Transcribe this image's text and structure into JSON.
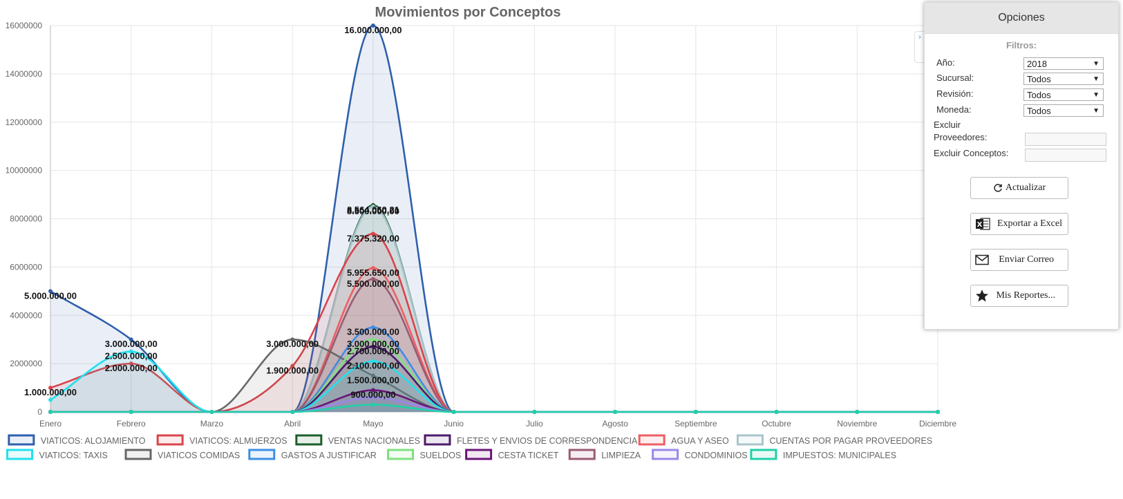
{
  "panel": {
    "title": "Opciones",
    "filters_title": "Filtros:",
    "year_label": "Año:",
    "year_value": "2018",
    "branch_label": "Sucursal:",
    "branch_value": "Todos",
    "review_label": "Revisión:",
    "review_value": "Todos",
    "currency_label": "Moneda:",
    "currency_value": "Todos",
    "exclude_suppliers_label_1": "Excluir",
    "exclude_suppliers_label_2": "Proveedores:",
    "exclude_concepts_label": "Excluir Conceptos:",
    "btn_update": "Actualizar",
    "btn_excel": "Exportar a Excel",
    "btn_mail": "Enviar Correo",
    "btn_reports": "Mis Reportes...",
    "collapse_glyph": "›"
  },
  "chart_data": {
    "type": "area",
    "title": "Movimientos por Conceptos",
    "categories": [
      "Enero",
      "Febrero",
      "Marzo",
      "Abril",
      "Mayo",
      "Junio",
      "Julio",
      "Agosto",
      "Septiembre",
      "Octubre",
      "Noviembre",
      "Diciembre"
    ],
    "ylim": [
      0,
      16000000
    ],
    "yticks": [
      0,
      2000000,
      4000000,
      6000000,
      8000000,
      10000000,
      12000000,
      14000000,
      16000000
    ],
    "grid": true,
    "legend_position": "bottom",
    "series": [
      {
        "name": "VIATICOS: ALOJAMIENTO",
        "color": "#2e5fac",
        "values": [
          5000000,
          3000000,
          0,
          0,
          16000000,
          0,
          0,
          0,
          0,
          0,
          0,
          0
        ]
      },
      {
        "name": "VIATICOS: ALMUERZOS",
        "color": "#d9434a",
        "values": [
          1000000,
          2000000,
          0,
          1900000,
          7375320,
          0,
          0,
          0,
          0,
          0,
          0,
          0
        ]
      },
      {
        "name": "VENTAS NACIONALES",
        "color": "#1b5e2a",
        "values": [
          0,
          0,
          0,
          0,
          8564060,
          0,
          0,
          0,
          0,
          0,
          0,
          0
        ]
      },
      {
        "name": "FLETES Y ENVIOS DE CORRESPONDENCIA",
        "color": "#4b1a6b",
        "values": [
          0,
          0,
          0,
          0,
          2700000,
          0,
          0,
          0,
          0,
          0,
          0,
          0
        ]
      },
      {
        "name": "AGUA Y ASEO",
        "color": "#ec5f63",
        "values": [
          0,
          0,
          0,
          0,
          5955650,
          0,
          0,
          0,
          0,
          0,
          0,
          0
        ]
      },
      {
        "name": "CUENTAS POR PAGAR PROVEEDORES",
        "color": "#a9c4cc",
        "values": [
          0,
          0,
          0,
          0,
          8500000,
          0,
          0,
          0,
          0,
          0,
          0,
          0
        ]
      },
      {
        "name": "VIATICOS: TAXIS",
        "color": "#22e0ee",
        "values": [
          500000,
          2500000,
          0,
          0,
          2100000,
          0,
          0,
          0,
          0,
          0,
          0,
          0
        ]
      },
      {
        "name": "VIATICOS COMIDAS",
        "color": "#676767",
        "values": [
          0,
          0,
          0,
          3000000,
          1500000,
          0,
          0,
          0,
          0,
          0,
          0,
          0
        ]
      },
      {
        "name": "GASTOS A JUSTIFICAR",
        "color": "#3d8ee6",
        "values": [
          0,
          0,
          0,
          0,
          3500000,
          0,
          0,
          0,
          0,
          0,
          0,
          0
        ]
      },
      {
        "name": "SUELDOS",
        "color": "#7fe07f",
        "values": [
          0,
          0,
          0,
          0,
          3000000,
          0,
          0,
          0,
          0,
          0,
          0,
          0
        ]
      },
      {
        "name": "CESTA TICKET",
        "color": "#6a1577",
        "values": [
          0,
          0,
          0,
          0,
          900000,
          0,
          0,
          0,
          0,
          0,
          0,
          0
        ]
      },
      {
        "name": "LIMPIEZA",
        "color": "#9a5a74",
        "values": [
          0,
          0,
          0,
          0,
          5500000,
          0,
          0,
          0,
          0,
          0,
          0,
          0
        ]
      },
      {
        "name": "CONDOMINIOS",
        "color": "#9b87e8",
        "values": [
          0,
          0,
          0,
          0,
          600000,
          0,
          0,
          0,
          0,
          0,
          0,
          0
        ]
      },
      {
        "name": "IMPUESTOS: MUNICIPALES",
        "color": "#1fd1a7",
        "values": [
          0,
          0,
          0,
          0,
          300000,
          0,
          0,
          0,
          0,
          0,
          0,
          0
        ]
      }
    ],
    "data_labels": [
      {
        "category": "Mayo",
        "y": 16000000,
        "text": "16.000.000,00"
      },
      {
        "category": "Mayo",
        "y": 8564060,
        "text": "8.564.060,21"
      },
      {
        "category": "Mayo",
        "y": 8500000,
        "text": "8.500.000,00"
      },
      {
        "category": "Mayo",
        "y": 7375320,
        "text": "7.375.320,00"
      },
      {
        "category": "Mayo",
        "y": 5955650,
        "text": "5.955.650,00"
      },
      {
        "category": "Mayo",
        "y": 5500000,
        "text": "5.500.000,00"
      },
      {
        "category": "Mayo",
        "y": 3500000,
        "text": "3.500.000,00"
      },
      {
        "category": "Mayo",
        "y": 3000000,
        "text": "3.000.000,00"
      },
      {
        "category": "Mayo",
        "y": 2700000,
        "text": "2.700.000,00"
      },
      {
        "category": "Mayo",
        "y": 2100000,
        "text": "2.100.000,00"
      },
      {
        "category": "Mayo",
        "y": 1500000,
        "text": "1.500.000,00"
      },
      {
        "category": "Mayo",
        "y": 900000,
        "text": "900.000,00"
      },
      {
        "category": "Enero",
        "y": 5000000,
        "text": "5.000.000,00"
      },
      {
        "category": "Enero",
        "y": 1000000,
        "text": "1.000.000,00"
      },
      {
        "category": "Febrero",
        "y": 3000000,
        "text": "3.000.000,00"
      },
      {
        "category": "Febrero",
        "y": 2500000,
        "text": "2.500.000,00"
      },
      {
        "category": "Febrero",
        "y": 2000000,
        "text": "2.000.000,00"
      },
      {
        "category": "Abril",
        "y": 3000000,
        "text": "3.000.000,00"
      },
      {
        "category": "Abril",
        "y": 1900000,
        "text": "1.900.000,00"
      }
    ]
  }
}
